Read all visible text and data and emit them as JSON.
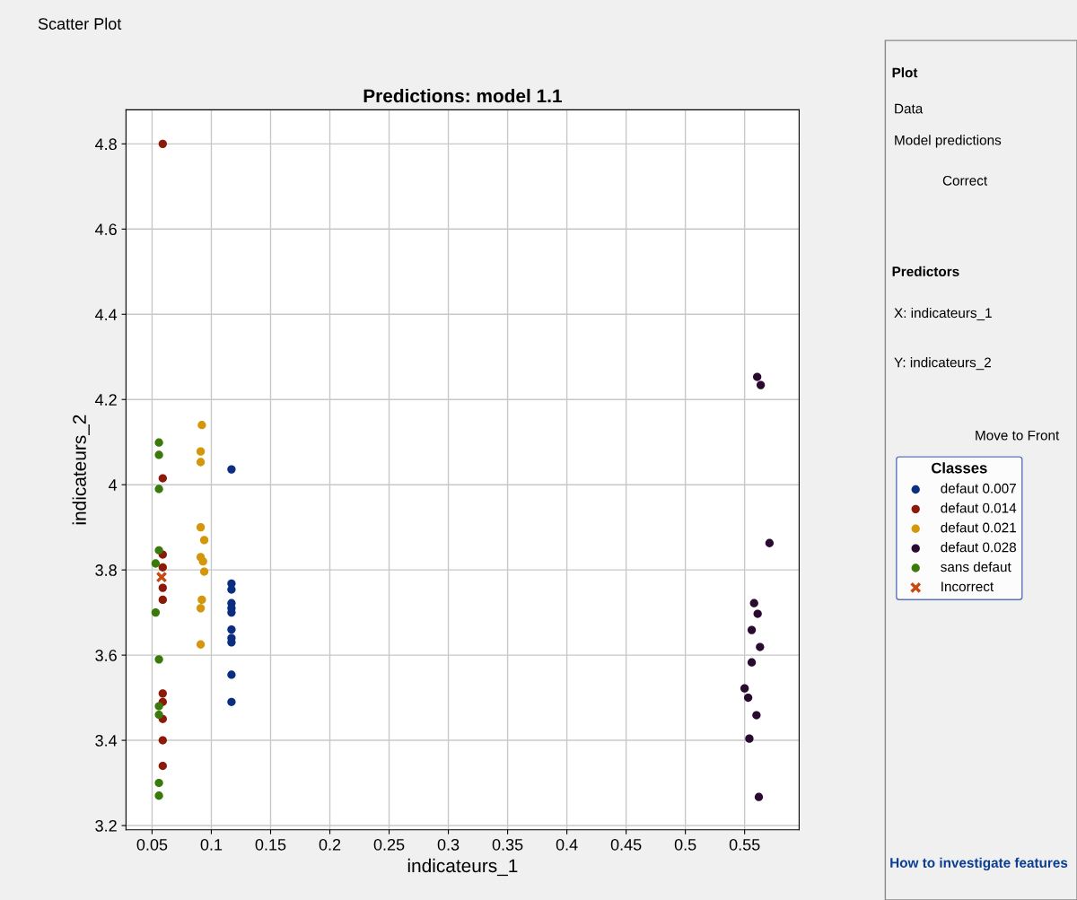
{
  "chart_data": {
    "type": "scatter",
    "title": "Predictions: model 1.1",
    "xlabel": "indicateurs_1",
    "ylabel": "indicateurs_2",
    "xlim": [
      0.028,
      0.596
    ],
    "ylim": [
      3.19,
      4.88
    ],
    "xticks": [
      0.05,
      0.1,
      0.15,
      0.2,
      0.25,
      0.3,
      0.35,
      0.4,
      0.45,
      0.5,
      0.55
    ],
    "yticks": [
      3.2,
      3.4,
      3.6,
      3.8,
      4,
      4.2,
      4.4,
      4.6,
      4.8
    ],
    "grid": true,
    "legend": "right",
    "legend_title": "Classes",
    "marker": "circle",
    "series": [
      {
        "name": "defaut 0.007",
        "color": "#0c2e80",
        "x": [
          0.117,
          0.117,
          0.117,
          0.117,
          0.117,
          0.117,
          0.117,
          0.117,
          0.117,
          0.117,
          0.117
        ],
        "values": [
          4.036,
          3.768,
          3.754,
          3.722,
          3.71,
          3.7,
          3.66,
          3.64,
          3.63,
          3.554,
          3.49
        ]
      },
      {
        "name": "defaut 0.014",
        "color": "#8b1a0a",
        "x": [
          0.059,
          0.059,
          0.059,
          0.059,
          0.059,
          0.059,
          0.059,
          0.059,
          0.059,
          0.059,
          0.059
        ],
        "values": [
          4.8,
          4.015,
          3.836,
          3.806,
          3.758,
          3.73,
          3.51,
          3.49,
          3.45,
          3.4,
          3.34
        ]
      },
      {
        "name": "defaut 0.021",
        "color": "#d4960a",
        "x": [
          0.092,
          0.091,
          0.091,
          0.091,
          0.094,
          0.091,
          0.093,
          0.094,
          0.092,
          0.091,
          0.091
        ],
        "values": [
          4.14,
          4.078,
          4.053,
          3.9,
          3.87,
          3.83,
          3.82,
          3.796,
          3.73,
          3.71,
          3.625
        ]
      },
      {
        "name": "defaut 0.028",
        "color": "#2a0a30",
        "x": [
          0.5606,
          0.5636,
          0.571,
          0.558,
          0.561,
          0.556,
          0.563,
          0.556,
          0.55,
          0.553,
          0.56,
          0.554,
          0.562
        ],
        "values": [
          4.253,
          4.234,
          3.863,
          3.722,
          3.697,
          3.659,
          3.619,
          3.583,
          3.522,
          3.5,
          3.459,
          3.404,
          3.267
        ]
      },
      {
        "name": "sans defaut",
        "color": "#3a7a0a",
        "x": [
          0.0558,
          0.0558,
          0.0558,
          0.0558,
          0.053,
          0.053,
          0.0558,
          0.0558,
          0.0558,
          0.0558,
          0.0558
        ],
        "values": [
          4.099,
          4.07,
          3.99,
          3.846,
          3.815,
          3.7,
          3.59,
          3.48,
          3.46,
          3.3,
          3.27
        ]
      },
      {
        "name": "Incorrect",
        "color": "#c84a10",
        "marker": "cross",
        "x": [
          0.058
        ],
        "values": [
          3.783
        ]
      }
    ],
    "annotations": [
      "Scatter Plot",
      "Plot",
      "Data",
      "Model predictions",
      "Correct",
      "Predictors",
      "X: indicateurs_1",
      "Y: indicateurs_2",
      "Move to Front",
      "How to investigate features"
    ]
  }
}
